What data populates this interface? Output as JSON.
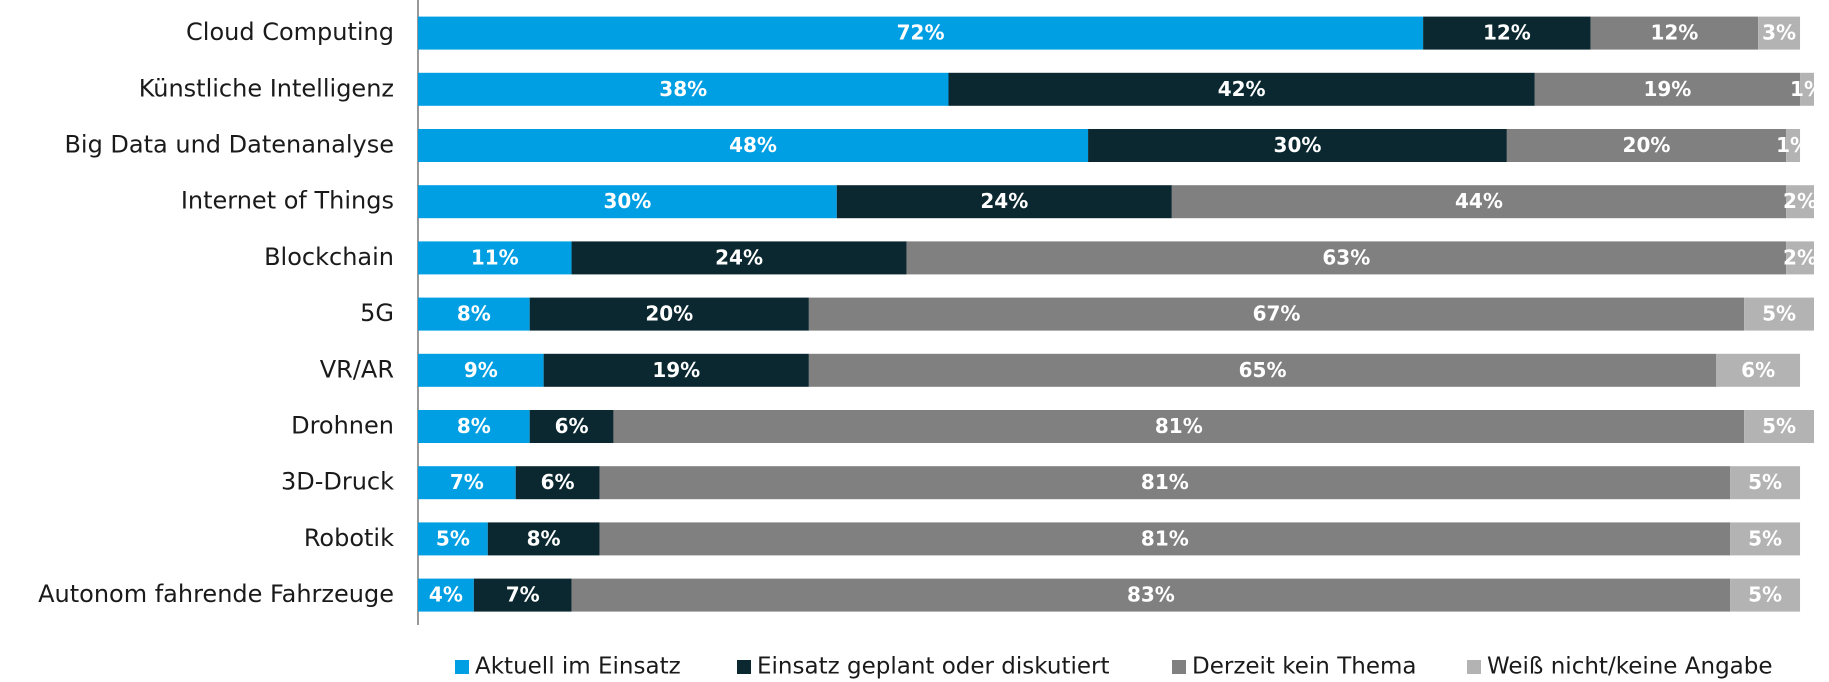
{
  "chart_data": {
    "type": "stacked_barh",
    "categories": [
      "Cloud Computing",
      "Künstliche Intelligenz",
      "Big Data und Datenanalyse",
      "Internet of Things",
      "Blockchain",
      "5G",
      "VR/AR",
      "Drohnen",
      "3D-Druck",
      "Robotik",
      "Autonom fahrende Fahrzeuge"
    ],
    "xlim": [
      0,
      100
    ],
    "legend": "bottom",
    "series": [
      {
        "name": "Aktuell im Einsatz",
        "color": "#009fe3",
        "values": [
          72,
          38,
          48,
          30,
          11,
          8,
          9,
          8,
          7,
          5,
          4
        ],
        "value_labels": [
          "72%",
          "38%",
          "48%",
          "30%",
          "11%",
          "8%",
          "9%",
          "8%",
          "7%",
          "5%",
          "4%"
        ]
      },
      {
        "name": "Einsatz geplant oder diskutiert",
        "color": "#0b2830",
        "values": [
          12,
          42,
          30,
          24,
          24,
          20,
          19,
          6,
          6,
          8,
          7
        ],
        "value_labels": [
          "12%",
          "42%",
          "30%",
          "24%",
          "24%",
          "20%",
          "19%",
          "6%",
          "6%",
          "8%",
          "7%"
        ]
      },
      {
        "name": "Derzeit kein Thema",
        "color": "#808080",
        "values": [
          12,
          19,
          20,
          44,
          63,
          67,
          65,
          81,
          81,
          81,
          83
        ],
        "value_labels": [
          "12%",
          "19%",
          "20%",
          "44%",
          "63%",
          "67%",
          "65%",
          "81%",
          "81%",
          "81%",
          "83%"
        ]
      },
      {
        "name": "Weiß nicht/keine Angabe",
        "color": "#b3b3b3",
        "values": [
          3,
          1,
          1,
          2,
          2,
          5,
          6,
          5,
          5,
          5,
          5
        ],
        "value_labels": [
          "3%",
          "1%",
          "1%",
          "2%",
          "2%",
          "5%",
          "6%",
          "5%",
          "5%",
          "5%",
          "5%"
        ]
      }
    ]
  }
}
